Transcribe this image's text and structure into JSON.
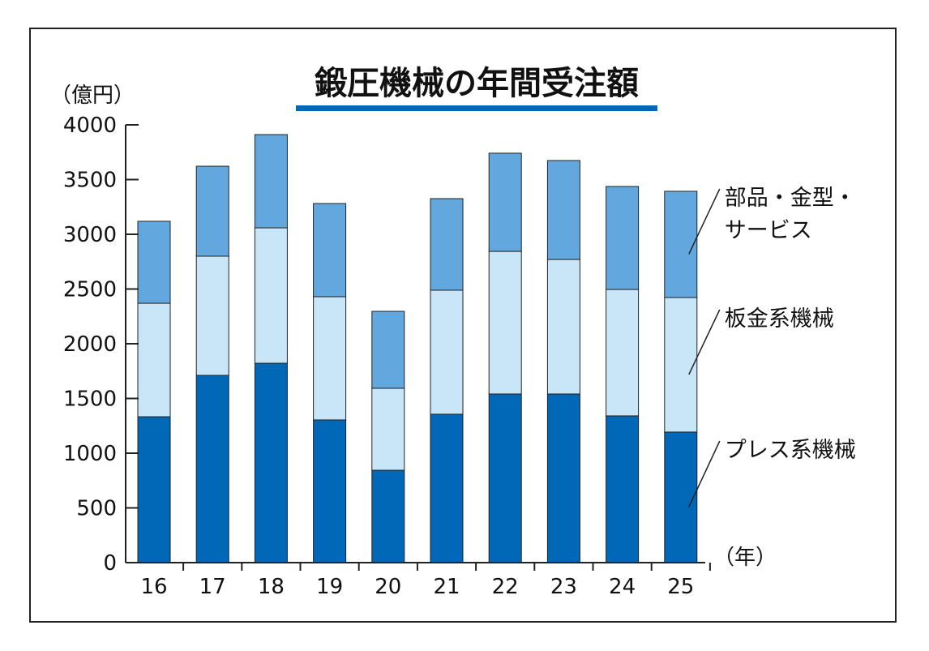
{
  "chart_data": {
    "type": "bar",
    "stacked": true,
    "title": "鍛圧機械の年間受注額",
    "ylabel": "（億円）",
    "xlabel": "（年）",
    "ylim": [
      0,
      4000
    ],
    "yticks": [
      "0",
      "500",
      "1000",
      "1500",
      "2000",
      "2500",
      "3000",
      "3500",
      "4000"
    ],
    "categories": [
      "16",
      "17",
      "18",
      "19",
      "20",
      "21",
      "22",
      "23",
      "24",
      "25"
    ],
    "grid": false,
    "legend": "right, labels beside the last bar",
    "series": [
      {
        "name": "プレス系機械",
        "color": "#0068b7",
        "values": [
          1333,
          1711,
          1822,
          1304,
          844,
          1356,
          1541,
          1541,
          1341,
          1193
        ]
      },
      {
        "name": "板金系機械",
        "color": "#c9e6f8",
        "values": [
          1037,
          1089,
          1237,
          1126,
          749,
          1133,
          1303,
          1229,
          1155,
          1229
        ]
      },
      {
        "name_lines": [
          "部品・金型・",
          "サービス"
        ],
        "color": "#62a8de",
        "values": [
          749,
          822,
          852,
          851,
          703,
          837,
          897,
          904,
          941,
          971
        ]
      }
    ],
    "title_underline_color": "#0068b7"
  }
}
